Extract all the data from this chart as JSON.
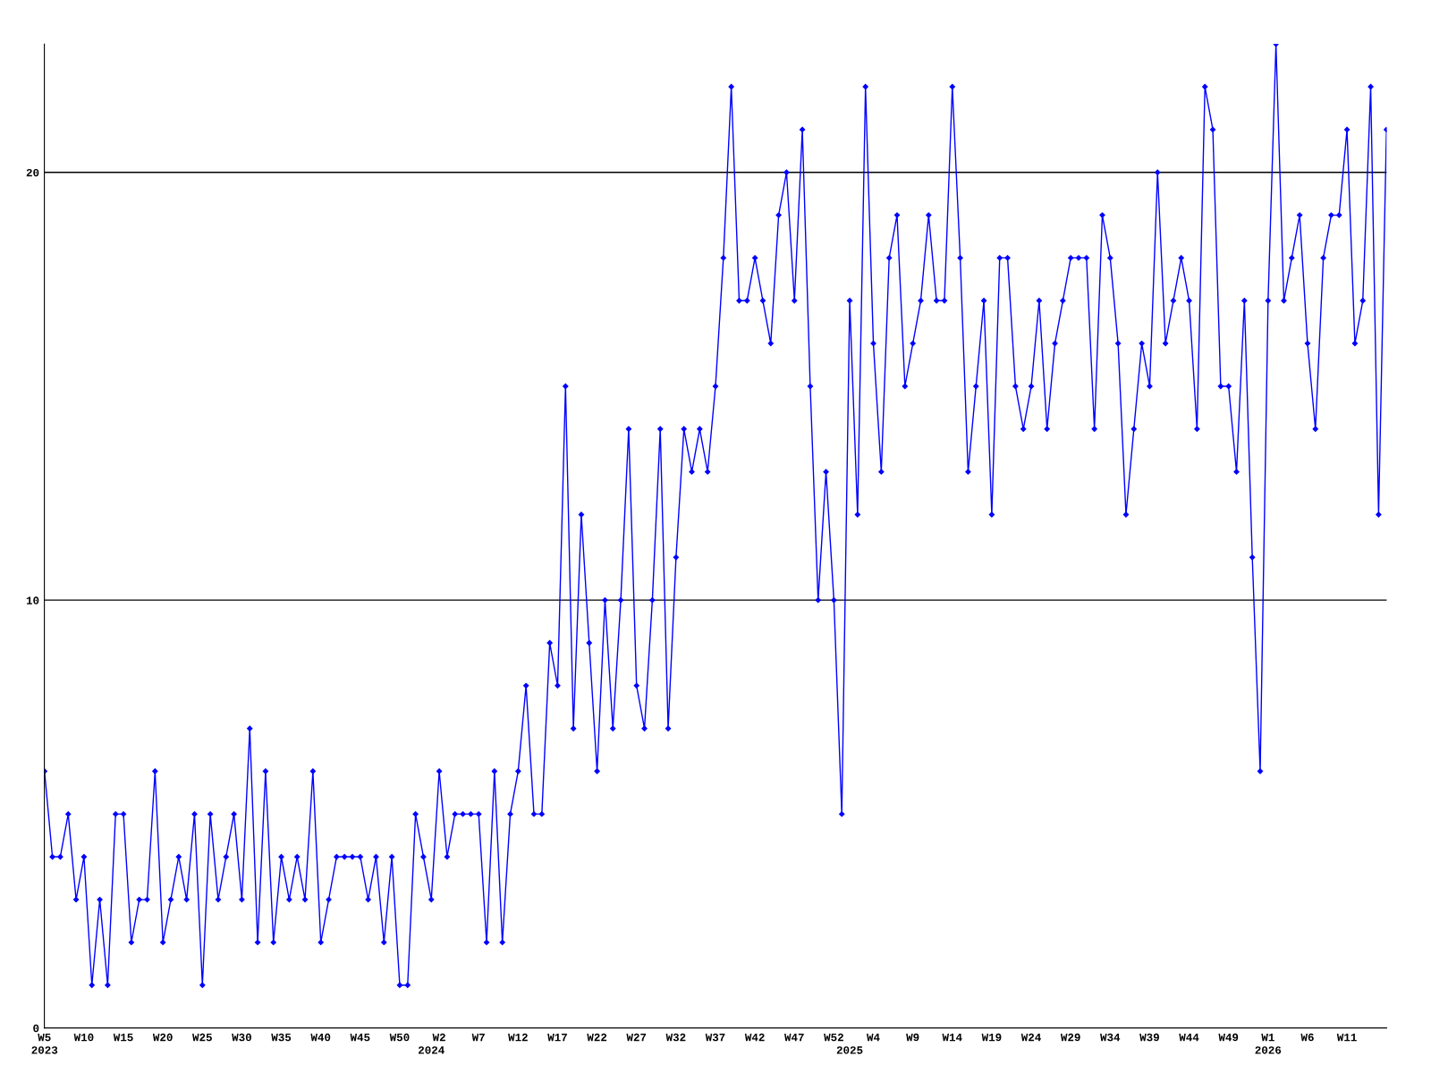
{
  "chart_data": {
    "type": "line",
    "categories": [
      "W5\n2023",
      null,
      null,
      null,
      null,
      "W10",
      null,
      null,
      null,
      null,
      "W15",
      null,
      null,
      null,
      null,
      "W20",
      null,
      null,
      null,
      null,
      "W25",
      null,
      null,
      null,
      null,
      "W30",
      null,
      null,
      null,
      null,
      "W35",
      null,
      null,
      null,
      null,
      "W40",
      null,
      null,
      null,
      null,
      "W45",
      null,
      null,
      null,
      null,
      "W50",
      null,
      null,
      null,
      "\n2024",
      "W2",
      null,
      null,
      null,
      null,
      "W7",
      null,
      null,
      null,
      null,
      "W12",
      null,
      null,
      null,
      null,
      "W17",
      null,
      null,
      null,
      null,
      "W22",
      null,
      null,
      null,
      null,
      "W27",
      null,
      null,
      null,
      null,
      "W32",
      null,
      null,
      null,
      null,
      "W37",
      null,
      null,
      null,
      null,
      "W42",
      null,
      null,
      null,
      null,
      "W47",
      null,
      null,
      null,
      null,
      "W52",
      null,
      "\n2025",
      null,
      null,
      "W4",
      null,
      null,
      null,
      null,
      "W9",
      null,
      null,
      null,
      null,
      "W14",
      null,
      null,
      null,
      null,
      "W19",
      null,
      null,
      null,
      null,
      "W24",
      null,
      null,
      null,
      null,
      "W29",
      null,
      null,
      null,
      null,
      "W34",
      null,
      null,
      null,
      null,
      "W39",
      null,
      null,
      null,
      null,
      "W44",
      null,
      null,
      null,
      null,
      "W49",
      null,
      null,
      null,
      null,
      "W1\n2026",
      null,
      null,
      null,
      null,
      "W6",
      null,
      null,
      null,
      null,
      "W11",
      null,
      null,
      null,
      null,
      null
    ],
    "series": [
      {
        "color": "#0000ff",
        "values": [
          6,
          4,
          4,
          5,
          3,
          4,
          1,
          3,
          1,
          5,
          5,
          2,
          3,
          3,
          6,
          2,
          3,
          4,
          3,
          5,
          1,
          5,
          3,
          4,
          5,
          3,
          7,
          2,
          6,
          2,
          4,
          3,
          4,
          3,
          6,
          2,
          3,
          4,
          4,
          4,
          4,
          3,
          4,
          2,
          4,
          1,
          1,
          5,
          4,
          3,
          6,
          4,
          5,
          5,
          5,
          5,
          2,
          6,
          2,
          5,
          6,
          8,
          5,
          5,
          9,
          8,
          15,
          7,
          12,
          9,
          6,
          10,
          7,
          10,
          14,
          8,
          7,
          10,
          14,
          7,
          11,
          14,
          13,
          14,
          13,
          15,
          18,
          22,
          17,
          17,
          18,
          17,
          16,
          19,
          20,
          17,
          21,
          15,
          10,
          13,
          10,
          5,
          17,
          12,
          22,
          16,
          13,
          18,
          19,
          15,
          16,
          17,
          19,
          17,
          17,
          22,
          18,
          13,
          15,
          17,
          12,
          18,
          18,
          15,
          14,
          15,
          17,
          14,
          16,
          17,
          18,
          18,
          18,
          14,
          19,
          18,
          16,
          12,
          14,
          16,
          15,
          20,
          16,
          17,
          18,
          17,
          14,
          22,
          21,
          15,
          15,
          13,
          17,
          11,
          6,
          17,
          23,
          17,
          18,
          19,
          16,
          14,
          18,
          19,
          19,
          21,
          16,
          17,
          22,
          12,
          21
        ]
      }
    ],
    "ylim": [
      0,
      23
    ],
    "yticks": [
      0,
      10,
      20
    ],
    "grid": "y",
    "marker": "diamond",
    "line_style": "solid",
    "legend": false
  }
}
